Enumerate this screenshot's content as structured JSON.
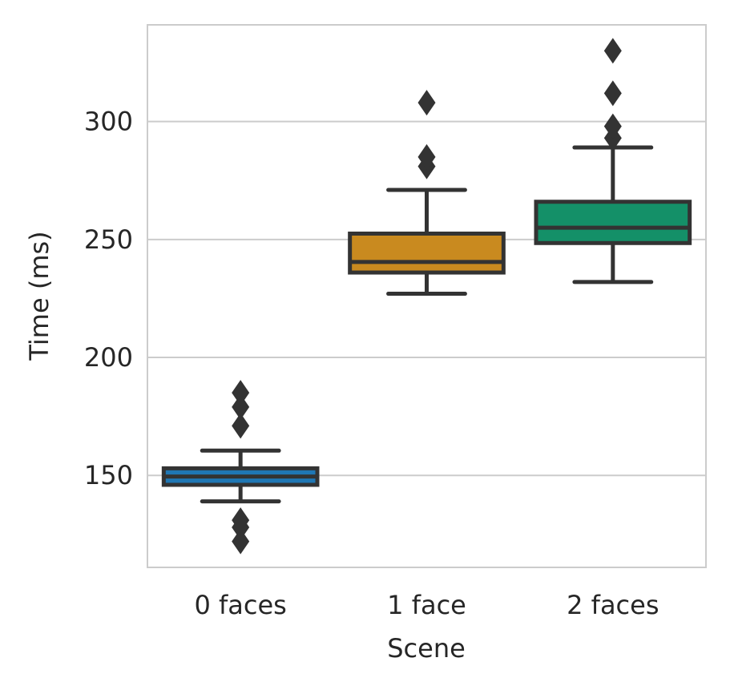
{
  "chart_data": {
    "type": "box",
    "title": "",
    "xlabel": "Scene",
    "ylabel": "Time (ms)",
    "ylim": [
      111,
      341
    ],
    "yticks": [
      150,
      200,
      250,
      300
    ],
    "grid": "horizontal",
    "legend": "none",
    "categories": [
      "0 faces",
      "1 face",
      "2 faces"
    ],
    "boxes": [
      {
        "category": "0 faces",
        "color": "#1f77b4",
        "q1": 146,
        "median": 149.5,
        "q3": 153,
        "whisker_low": 139,
        "whisker_high": 160.5,
        "outliers": [
          122,
          128,
          131,
          171,
          179,
          185
        ]
      },
      {
        "category": "1 face",
        "color": "#c98a1f",
        "q1": 236,
        "median": 240.5,
        "q3": 252.5,
        "whisker_low": 227,
        "whisker_high": 271,
        "outliers": [
          281,
          285,
          308
        ]
      },
      {
        "category": "2 faces",
        "color": "#149068",
        "q1": 248.5,
        "median": 255,
        "q3": 266,
        "whisker_low": 232,
        "whisker_high": 289,
        "outliers": [
          293,
          298,
          312,
          330
        ]
      }
    ]
  }
}
